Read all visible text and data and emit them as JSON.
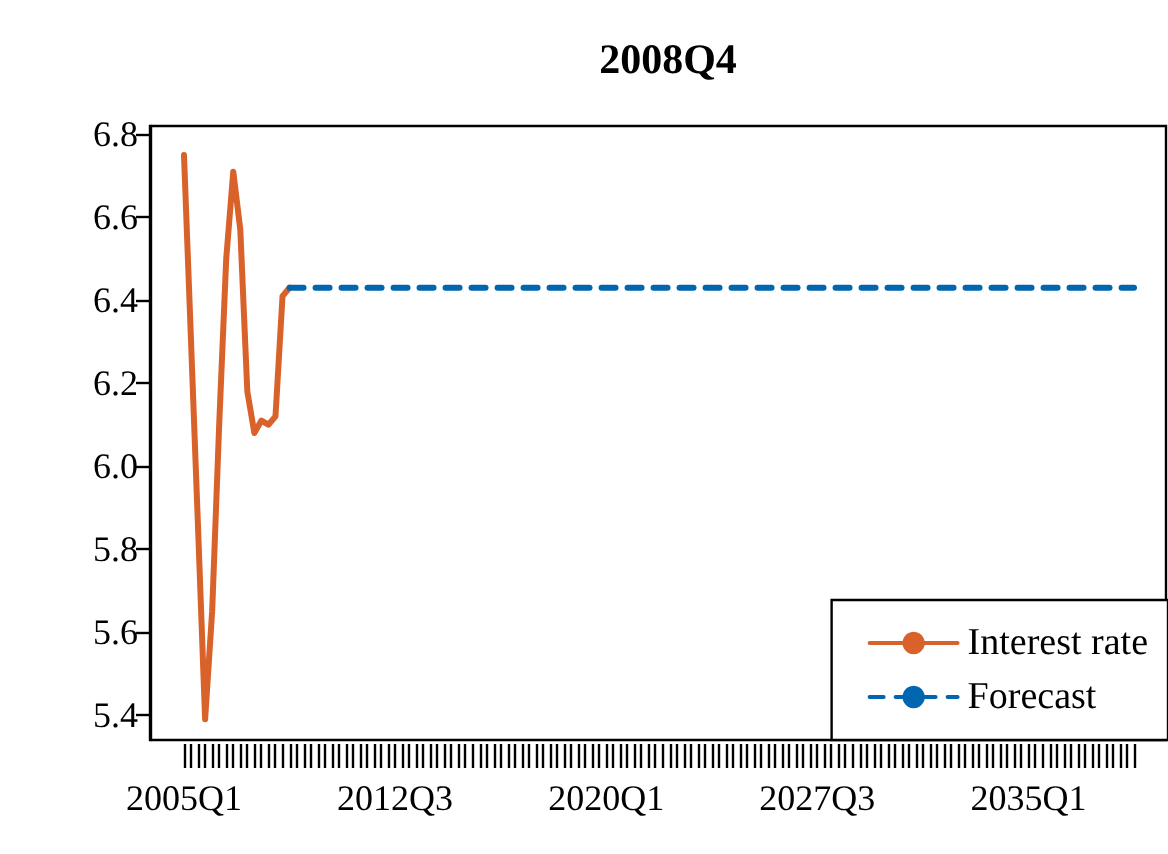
{
  "chart_data": {
    "type": "line",
    "title": "2008Q4",
    "categories": [
      "2005Q1",
      null,
      null,
      null,
      null,
      null,
      null,
      null,
      null,
      null,
      null,
      null,
      null,
      null,
      null,
      null,
      null,
      null,
      null,
      null,
      null,
      null,
      null,
      null,
      null,
      null,
      null,
      null,
      null,
      null,
      "2012Q3",
      null,
      null,
      null,
      null,
      null,
      null,
      null,
      null,
      null,
      null,
      null,
      null,
      null,
      null,
      null,
      null,
      null,
      null,
      null,
      null,
      null,
      null,
      null,
      null,
      null,
      null,
      null,
      null,
      null,
      "2020Q1",
      null,
      null,
      null,
      null,
      null,
      null,
      null,
      null,
      null,
      null,
      null,
      null,
      null,
      null,
      null,
      null,
      null,
      null,
      null,
      null,
      null,
      null,
      null,
      null,
      null,
      null,
      null,
      null,
      null,
      "2027Q3",
      null,
      null,
      null,
      null,
      null,
      null,
      null,
      null,
      null,
      null,
      null,
      null,
      null,
      null,
      null,
      null,
      null,
      null,
      null,
      null,
      null,
      null,
      null,
      null,
      null,
      null,
      null,
      null,
      null,
      "2035Q1",
      null,
      null,
      null,
      null,
      null,
      null,
      null,
      null,
      null,
      null,
      null,
      null,
      null,
      null,
      null
    ],
    "series": [
      {
        "name": "Interest rate",
        "color": "#d9622b",
        "line_style": "solid",
        "values": [
          6.75,
          6.3,
          5.85,
          5.39,
          5.65,
          6.1,
          6.5,
          6.71,
          6.57,
          6.18,
          6.08,
          6.11,
          6.1,
          6.12,
          6.41,
          6.43,
          null,
          null,
          null,
          null,
          null,
          null,
          null,
          null,
          null,
          null,
          null,
          null,
          null,
          null,
          null,
          null,
          null,
          null,
          null,
          null,
          null,
          null,
          null,
          null,
          null,
          null,
          null,
          null,
          null,
          null,
          null,
          null,
          null,
          null,
          null,
          null,
          null,
          null,
          null,
          null,
          null,
          null,
          null,
          null,
          null,
          null,
          null,
          null,
          null,
          null,
          null,
          null,
          null,
          null,
          null,
          null,
          null,
          null,
          null,
          null,
          null,
          null,
          null,
          null,
          null,
          null,
          null,
          null,
          null,
          null,
          null,
          null,
          null,
          null,
          null,
          null,
          null,
          null,
          null,
          null,
          null,
          null,
          null,
          null,
          null,
          null,
          null,
          null,
          null,
          null,
          null,
          null,
          null,
          null,
          null,
          null,
          null,
          null,
          null,
          null,
          null,
          null,
          null,
          null,
          null,
          null,
          null,
          null,
          null,
          null,
          null,
          null,
          null,
          null,
          null,
          null,
          null,
          null,
          null,
          null
        ]
      },
      {
        "name": "Forecast",
        "color": "#0066b0",
        "line_style": "dashed",
        "values": [
          null,
          null,
          null,
          null,
          null,
          null,
          null,
          null,
          null,
          null,
          null,
          null,
          null,
          null,
          null,
          6.43,
          6.43,
          6.43,
          6.43,
          6.43,
          6.43,
          6.43,
          6.43,
          6.43,
          6.43,
          6.43,
          6.43,
          6.43,
          6.43,
          6.43,
          6.43,
          6.43,
          6.43,
          6.43,
          6.43,
          6.43,
          6.43,
          6.43,
          6.43,
          6.43,
          6.43,
          6.43,
          6.43,
          6.43,
          6.43,
          6.43,
          6.43,
          6.43,
          6.43,
          6.43,
          6.43,
          6.43,
          6.43,
          6.43,
          6.43,
          6.43,
          6.43,
          6.43,
          6.43,
          6.43,
          6.43,
          6.43,
          6.43,
          6.43,
          6.43,
          6.43,
          6.43,
          6.43,
          6.43,
          6.43,
          6.43,
          6.43,
          6.43,
          6.43,
          6.43,
          6.43,
          6.43,
          6.43,
          6.43,
          6.43,
          6.43,
          6.43,
          6.43,
          6.43,
          6.43,
          6.43,
          6.43,
          6.43,
          6.43,
          6.43,
          6.43,
          6.43,
          6.43,
          6.43,
          6.43,
          6.43,
          6.43,
          6.43,
          6.43,
          6.43,
          6.43,
          6.43,
          6.43,
          6.43,
          6.43,
          6.43,
          6.43,
          6.43,
          6.43,
          6.43,
          6.43,
          6.43,
          6.43,
          6.43,
          6.43,
          6.43,
          6.43,
          6.43,
          6.43,
          6.43,
          6.43,
          6.43,
          6.43,
          6.43,
          6.43,
          6.43,
          6.43,
          6.43,
          6.43,
          6.43,
          6.43,
          6.43,
          6.43,
          6.43,
          6.43,
          6.43
        ]
      }
    ],
    "ylim": [
      5.34,
      6.82
    ],
    "yticks": [
      5.4,
      5.6,
      5.8,
      {
        "value": 6,
        "label": "6.0"
      },
      6.2,
      6.4,
      6.6,
      6.8
    ],
    "grid": false,
    "legend": "bottom right",
    "marker": "none"
  }
}
